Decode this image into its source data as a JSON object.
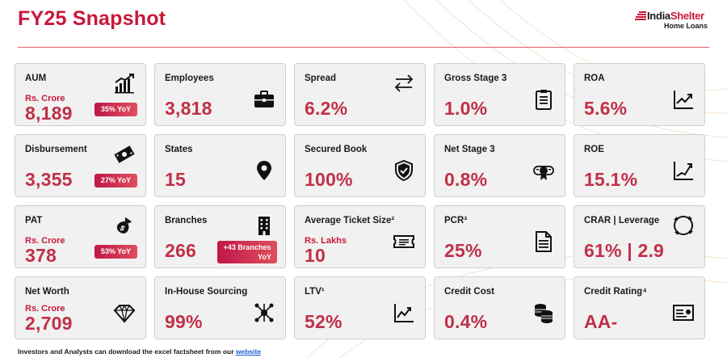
{
  "header": {
    "title": "FY25 Snapshot",
    "logo_brand_a": "India",
    "logo_brand_b": "Shelter",
    "logo_sub": "Home Loans"
  },
  "colors": {
    "accent": "#c8183a",
    "value": "#c03048",
    "card_bg": "#f1f1f1",
    "badge_start": "#c0164a",
    "badge_end": "#e0505c",
    "link": "#1a5fd0"
  },
  "cards": [
    {
      "label": "AUM",
      "unit": "Rs. Crore",
      "value": "8,189",
      "badge": "35% YoY",
      "icon": "growth-bar-chart-icon"
    },
    {
      "label": "Employees",
      "value": "3,818",
      "icon": "briefcase-icon"
    },
    {
      "label": "Spread",
      "value": "6.2%",
      "icon": "swap-arrows-icon"
    },
    {
      "label": "Gross Stage 3",
      "value": "1.0%",
      "icon": "clipboard-icon"
    },
    {
      "label": "ROA",
      "value": "5.6%",
      "icon": "line-chart-icon"
    },
    {
      "label": "Disbursement",
      "value": "3,355",
      "badge": "27% YoY",
      "icon": "cash-icon"
    },
    {
      "label": "States",
      "value": "15",
      "icon": "location-pin-icon"
    },
    {
      "label": "Secured Book",
      "value": "100%",
      "icon": "shield-check-icon"
    },
    {
      "label": "Net Stage 3",
      "value": "0.8%",
      "icon": "certificate-icon"
    },
    {
      "label": "ROE",
      "value": "15.1%",
      "icon": "trend-up-chart-icon"
    },
    {
      "label": "PAT",
      "unit": "Rs. Crore",
      "value": "378",
      "badge": "53% YoY",
      "icon": "money-bag-icon"
    },
    {
      "label": "Branches",
      "value": "266",
      "badge_line1": "+43 Branches",
      "badge_line2": "YoY",
      "icon": "building-icon"
    },
    {
      "label": "Average Ticket Size²",
      "unit": "Rs. Lakhs",
      "value": "10",
      "icon": "ticket-icon"
    },
    {
      "label": "PCR³",
      "value": "25%",
      "icon": "document-icon"
    },
    {
      "label": "CRAR | Leverage",
      "value": "61% | 2.9",
      "icon": "cycle-arrows-icon"
    },
    {
      "label": "Net Worth",
      "unit": "Rs. Crore",
      "value": "2,709",
      "icon": "diamond-icon"
    },
    {
      "label": "In-House Sourcing",
      "value": "99%",
      "icon": "network-icon"
    },
    {
      "label": "LTV¹",
      "value": "52%",
      "icon": "zigzag-chart-icon"
    },
    {
      "label": "Credit Cost",
      "value": "0.4%",
      "icon": "coins-icon"
    },
    {
      "label": "Credit Rating⁴",
      "value": "AA-",
      "icon": "id-card-icon"
    }
  ],
  "footer": {
    "text": "Investors and Analysts can download the excel factsheet from our ",
    "link": "website"
  }
}
